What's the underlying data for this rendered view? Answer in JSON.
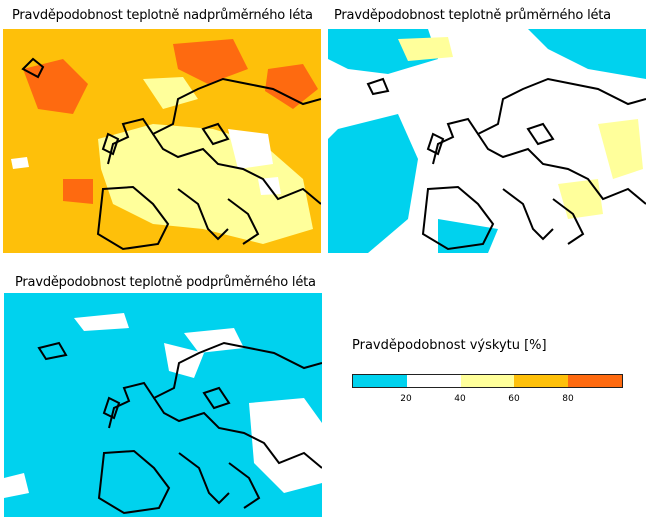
{
  "maps": [
    {
      "title": "Pravděpodobnost teplotně nadprůměrného léta",
      "base_color": "#fec00a",
      "pattern": "above"
    },
    {
      "title": "Pravděpodobnost teplotně průměrného léta",
      "base_color": "#ffffff",
      "pattern": "normal"
    },
    {
      "title": "Pravděpodobnost teplotně podprůměrného léta",
      "base_color": "#00d2ee",
      "pattern": "below"
    }
  ],
  "legend": {
    "title": "Pravděpodobnost výskytu [%]",
    "ticks": [
      "20",
      "40",
      "60",
      "80"
    ],
    "colors": [
      "#00d2ee",
      "#ffffff",
      "#ffff9b",
      "#fec00a",
      "#fe6a10"
    ],
    "tick_values": [
      20,
      40,
      60,
      80
    ],
    "range": [
      0,
      100
    ]
  },
  "palette": {
    "cyan": "#00d2ee",
    "white": "#ffffff",
    "light_yellow": "#ffff9b",
    "orange": "#fec00a",
    "dark_orange": "#fe6a10",
    "land_outline": "#000000"
  }
}
